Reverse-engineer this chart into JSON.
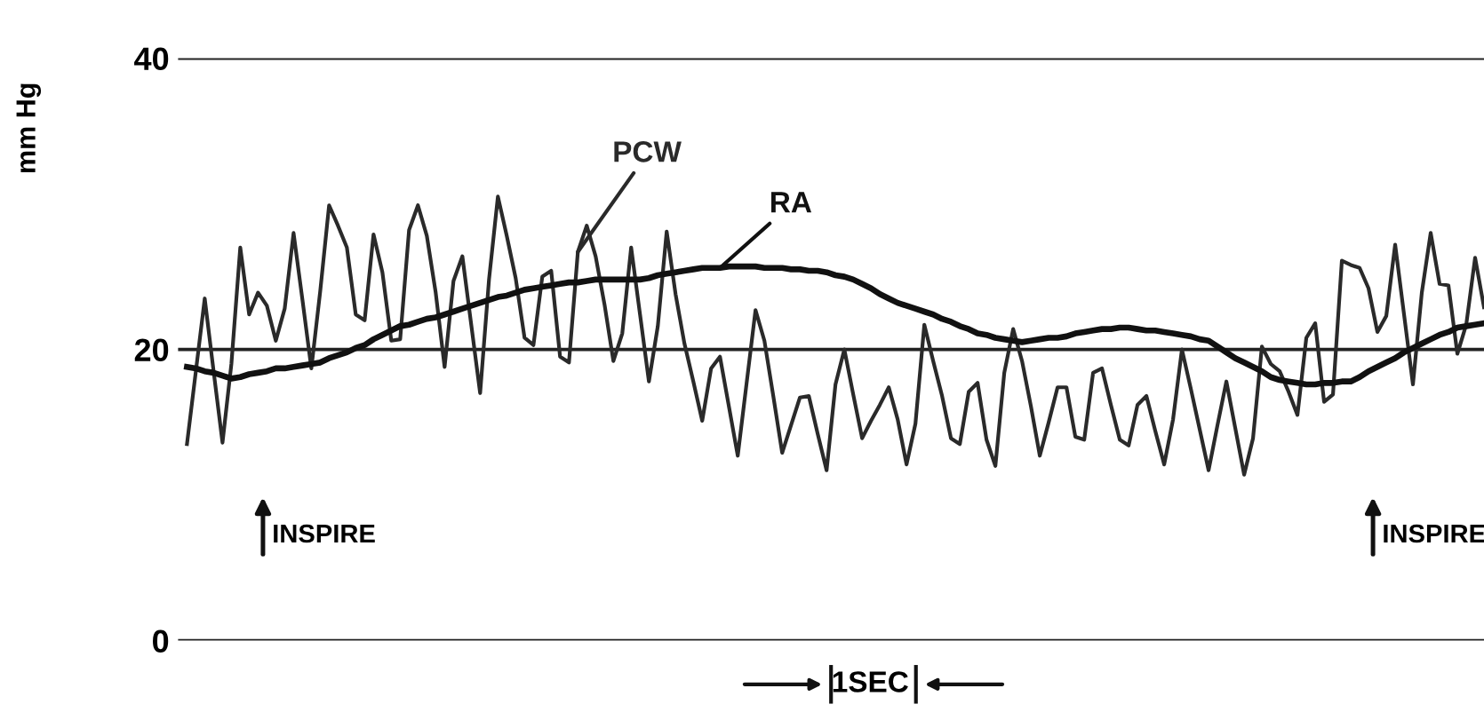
{
  "chart_data": {
    "type": "line",
    "ylabel": "mm Hg",
    "ylim": [
      0,
      40
    ],
    "yticks": [
      0,
      20,
      40
    ],
    "tick_labels": "y",
    "grid": "y",
    "legend": false,
    "marker": "none",
    "line_style": "solid",
    "categories": [
      null,
      null,
      null,
      null,
      null,
      null,
      null,
      null,
      null,
      null,
      null,
      null,
      null,
      null,
      null,
      null,
      null,
      null,
      null,
      null,
      null,
      null,
      null,
      null,
      null,
      null,
      null,
      null,
      null,
      null,
      null,
      null,
      null,
      null,
      null,
      null,
      null,
      null,
      null,
      null,
      null,
      null,
      null,
      null,
      null,
      null,
      null,
      null,
      null,
      null,
      null,
      null,
      null,
      null,
      null,
      null,
      null,
      null,
      null,
      null,
      null,
      null,
      null,
      null,
      null,
      null,
      null,
      null,
      null,
      null,
      null,
      null,
      null,
      null,
      null,
      null,
      null,
      null,
      null,
      null,
      null,
      null,
      null,
      null,
      null,
      null,
      null,
      null,
      null,
      null,
      null,
      null,
      null,
      null,
      null,
      null,
      null,
      null,
      null,
      null,
      null,
      null,
      null,
      null,
      null,
      null,
      null,
      null,
      null,
      null,
      null,
      null,
      null,
      null,
      null,
      null,
      null,
      null,
      null,
      null,
      null,
      null,
      null,
      null,
      null,
      null,
      null,
      null,
      null,
      null,
      null,
      null,
      null,
      null,
      null,
      null,
      null,
      null,
      null,
      null,
      null,
      null,
      null,
      null,
      null,
      null,
      null
    ],
    "series": [
      {
        "name": "PCW",
        "color": "#2a2a2a",
        "values": [
          13.5,
          18.5,
          23.5,
          18.5,
          13.6,
          19,
          27,
          22.4,
          23.9,
          23,
          20.6,
          22.8,
          28,
          23.4,
          18.7,
          24,
          29.9,
          28.5,
          27,
          22.4,
          22,
          27.9,
          25.3,
          20.6,
          20.7,
          28.2,
          29.9,
          27.8,
          23.9,
          18.8,
          24.7,
          26.4,
          21.7,
          17,
          24.8,
          30.5,
          27.8,
          24.9,
          20.8,
          20.3,
          25,
          25.4,
          19.5,
          19.1,
          26.7,
          28.5,
          26.4,
          23.1,
          19.2,
          21.1,
          27,
          22.4,
          17.8,
          21.6,
          28.1,
          23.8,
          20.4,
          17.8,
          15.1,
          18.7,
          19.5,
          16.1,
          12.7,
          17.7,
          22.7,
          20.6,
          16.8,
          12.9,
          14.8,
          16.7,
          16.8,
          14.2,
          11.7,
          17.6,
          20,
          16.9,
          13.9,
          15.1,
          16.2,
          17.4,
          15.2,
          12.1,
          14.9,
          21.7,
          19.2,
          16.8,
          13.9,
          13.5,
          17.1,
          17.7,
          13.8,
          12,
          18.4,
          21.4,
          19.2,
          16.1,
          12.7,
          15,
          17.4,
          17.4,
          14,
          13.8,
          18.4,
          18.7,
          16.2,
          13.8,
          13.4,
          16.2,
          16.8,
          14.4,
          12.1,
          15.2,
          20,
          17.3,
          14.5,
          11.7,
          14.8,
          17.8,
          14.6,
          11.4,
          13.9,
          20.2,
          19,
          18.5,
          17.1,
          15.5,
          20.8,
          21.8,
          16.4,
          16.9,
          26.1,
          25.8,
          25.6,
          24.2,
          21.2,
          22.3,
          27.2,
          22.4,
          17.6,
          23.9,
          28,
          24.5,
          24.4,
          19.7,
          21.7,
          26.3,
          22.9
        ]
      },
      {
        "name": "RA",
        "color": "#111111",
        "values": [
          18.8,
          18.7,
          18.5,
          18.4,
          18.2,
          18,
          18.1,
          18.3,
          18.4,
          18.5,
          18.7,
          18.7,
          18.8,
          18.9,
          19,
          19.1,
          19.4,
          19.6,
          19.8,
          20.1,
          20.3,
          20.7,
          21,
          21.3,
          21.6,
          21.7,
          21.9,
          22.1,
          22.2,
          22.4,
          22.6,
          22.8,
          23,
          23.2,
          23.4,
          23.6,
          23.7,
          23.9,
          24.1,
          24.2,
          24.3,
          24.4,
          24.5,
          24.6,
          24.6,
          24.7,
          24.8,
          24.8,
          24.8,
          24.8,
          24.8,
          24.8,
          24.9,
          25.1,
          25.2,
          25.3,
          25.4,
          25.5,
          25.6,
          25.6,
          25.6,
          25.7,
          25.7,
          25.7,
          25.7,
          25.6,
          25.6,
          25.6,
          25.5,
          25.5,
          25.4,
          25.4,
          25.3,
          25.1,
          25,
          24.8,
          24.5,
          24.2,
          23.8,
          23.5,
          23.2,
          23,
          22.8,
          22.6,
          22.4,
          22.1,
          21.9,
          21.6,
          21.4,
          21.1,
          21,
          20.8,
          20.7,
          20.6,
          20.5,
          20.6,
          20.7,
          20.8,
          20.8,
          20.9,
          21.1,
          21.2,
          21.3,
          21.4,
          21.4,
          21.5,
          21.5,
          21.4,
          21.3,
          21.3,
          21.2,
          21.1,
          21,
          20.9,
          20.7,
          20.6,
          20.2,
          19.8,
          19.4,
          19.1,
          18.8,
          18.5,
          18.1,
          17.9,
          17.8,
          17.7,
          17.6,
          17.6,
          17.7,
          17.7,
          17.8,
          17.8,
          18.1,
          18.5,
          18.8,
          19.1,
          19.4,
          19.8,
          20.1,
          20.4,
          20.7,
          21,
          21.2,
          21.5,
          21.6,
          21.7,
          21.8
        ]
      }
    ],
    "annotations": [
      "INSPIRE",
      "INSPIRE",
      "1SEC"
    ]
  }
}
